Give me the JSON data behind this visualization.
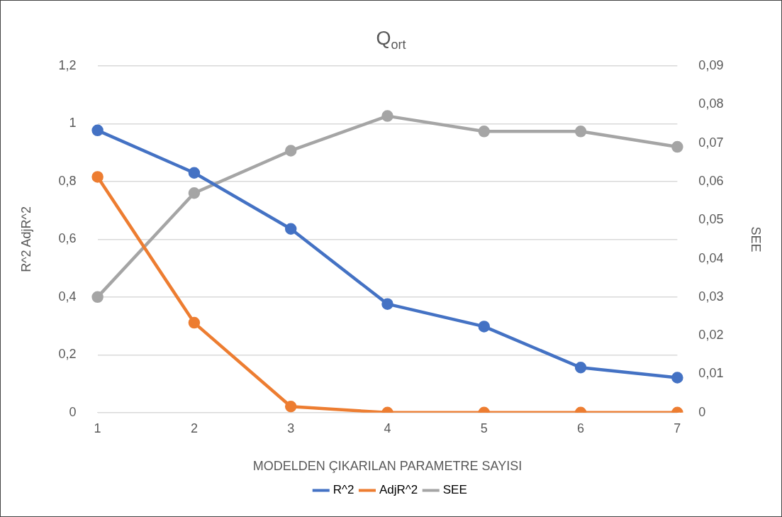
{
  "chart_data": {
    "type": "line",
    "title": "Q$_{ort}$",
    "xlabel": "MODELDEN ÇIKARILAN PARAMETRE SAYISI",
    "ylabel": "R^2 AdjR^2",
    "y2label": "SEE",
    "categories": [
      "1",
      "2",
      "3",
      "4",
      "5",
      "6",
      "7"
    ],
    "series": [
      {
        "name": "R^2",
        "color": "#4472c4",
        "values": [
          0.977,
          0.83,
          0.636,
          0.376,
          0.298,
          0.156,
          0.121
        ]
      },
      {
        "name": "AdjR^2",
        "color": "#ed7d31",
        "values": [
          0.816,
          0.311,
          0.021,
          0,
          0,
          0,
          0
        ]
      },
      {
        "name": "SEE",
        "color": "#a5a5a5",
        "axis": "y2",
        "values": [
          0.03,
          0.057,
          0.068,
          0.077,
          0.073,
          0.073,
          0.069
        ]
      }
    ],
    "ylim": [
      0,
      1.2
    ],
    "yticks": [
      0,
      {
        "value": 0.2,
        "label": "0,2"
      },
      {
        "value": 0.4,
        "label": "0,4"
      },
      {
        "value": 0.6,
        "label": "0,6"
      },
      {
        "value": 0.8,
        "label": "0,8"
      },
      1,
      {
        "value": 1.2,
        "label": "1,2"
      }
    ],
    "y2lim": [
      0,
      0.09
    ],
    "y2ticks": [
      0,
      {
        "value": 0.01,
        "label": "0,01"
      },
      {
        "value": 0.02,
        "label": "0,02"
      },
      {
        "value": 0.03,
        "label": "0,03"
      },
      {
        "value": 0.04,
        "label": "0,04"
      },
      {
        "value": 0.05,
        "label": "0,05"
      },
      {
        "value": 0.06,
        "label": "0,06"
      },
      {
        "value": 0.07,
        "label": "0,07"
      },
      {
        "value": 0.08,
        "label": "0,08"
      },
      {
        "value": 0.09,
        "label": "0,09"
      }
    ],
    "grid": "y",
    "legend": "bottom",
    "marker": "circle",
    "line_style": "solid"
  }
}
